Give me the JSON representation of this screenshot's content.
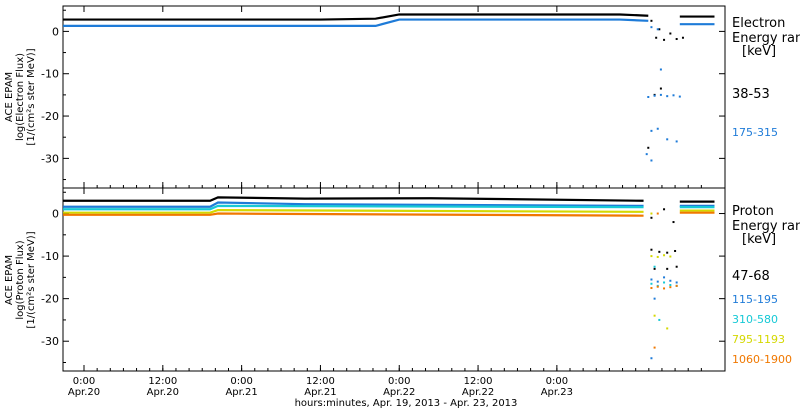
{
  "chart_data": [
    {
      "type": "scatter",
      "ylabel_lines": [
        "ACE EPAM",
        "log(Electron Flux)",
        "[1/(cm²s ster MeV)]"
      ],
      "yticks": [
        0,
        -10,
        -20,
        -30
      ],
      "ylim": [
        -37,
        6
      ],
      "xlim": [
        -0.1333,
        4.0667
      ],
      "legend_title_lines": [
        "Electron",
        "Energy ran",
        "[keV]"
      ],
      "series": [
        {
          "name": "38-53",
          "color": "#000000",
          "baseline": [
            [
              -0.133,
              2.8
            ],
            [
              1.5,
              2.8
            ],
            [
              1.85,
              3.0
            ],
            [
              2.0,
              4.0
            ],
            [
              3.4,
              4.0
            ],
            [
              3.58,
              3.7
            ]
          ],
          "values_end": [
            [
              3.78,
              3.5
            ],
            [
              4.0,
              3.5
            ]
          ],
          "values_scatter": [
            [
              3.6,
              2.5
            ],
            [
              3.63,
              -1.5
            ],
            [
              3.65,
              0.5
            ],
            [
              3.68,
              -2.0
            ],
            [
              3.72,
              -0.5
            ],
            [
              3.76,
              -1.8
            ],
            [
              3.8,
              -1.5
            ],
            [
              3.66,
              -13.5
            ],
            [
              3.58,
              -27.5
            ],
            [
              3.62,
              -15.0
            ]
          ]
        },
        {
          "name": "175-315",
          "color": "#1e7bd8",
          "baseline": [
            [
              -0.133,
              1.3
            ],
            [
              1.85,
              1.3
            ],
            [
              2.0,
              2.8
            ],
            [
              3.4,
              2.8
            ],
            [
              3.58,
              2.5
            ]
          ],
          "values_end": [
            [
              3.78,
              1.7
            ],
            [
              4.0,
              1.7
            ]
          ],
          "values_scatter": [
            [
              3.58,
              -15.5
            ],
            [
              3.62,
              -15.2
            ],
            [
              3.66,
              -15.0
            ],
            [
              3.7,
              -15.3
            ],
            [
              3.74,
              -15.1
            ],
            [
              3.78,
              -15.4
            ],
            [
              3.66,
              -9.0
            ],
            [
              3.6,
              1.0
            ],
            [
              3.64,
              0.5
            ],
            [
              3.6,
              -23.5
            ],
            [
              3.64,
              -23.0
            ],
            [
              3.7,
              -25.5
            ],
            [
              3.76,
              -26.0
            ],
            [
              3.57,
              -29.0
            ],
            [
              3.6,
              -30.5
            ]
          ]
        }
      ]
    },
    {
      "type": "scatter",
      "ylabel_lines": [
        "ACE EPAM",
        "log(Proton Flux)",
        "[1/(cm²s ster MeV)]"
      ],
      "yticks": [
        0,
        -10,
        -20,
        -30
      ],
      "ylim": [
        -37,
        6
      ],
      "xlim": [
        -0.1333,
        4.0667
      ],
      "legend_title_lines": [
        "Proton",
        "Energy ran",
        "[keV]"
      ],
      "xticks": [
        {
          "value": 0.0,
          "time": "0:00",
          "date": "Apr.20"
        },
        {
          "value": 0.5,
          "time": "12:00",
          "date": "Apr.20"
        },
        {
          "value": 1.0,
          "time": "0:00",
          "date": "Apr.21"
        },
        {
          "value": 1.5,
          "time": "12:00",
          "date": "Apr.21"
        },
        {
          "value": 2.0,
          "time": "0:00",
          "date": "Apr.22"
        },
        {
          "value": 2.5,
          "time": "12:00",
          "date": "Apr.22"
        },
        {
          "value": 3.0,
          "time": "0:00",
          "date": "Apr.23"
        }
      ],
      "xlabel": "hours:minutes, Apr. 19, 2013 - Apr. 23, 2013",
      "series": [
        {
          "name": "47-68",
          "color": "#000000",
          "baseline": [
            [
              -0.133,
              3.0
            ],
            [
              0.8,
              3.0
            ],
            [
              0.85,
              3.8
            ],
            [
              1.4,
              3.5
            ],
            [
              2.2,
              3.6
            ],
            [
              3.55,
              3.0
            ]
          ],
          "values_end": [
            [
              3.78,
              2.8
            ],
            [
              4.0,
              2.8
            ]
          ],
          "values_scatter": [
            [
              3.6,
              -8.5
            ],
            [
              3.65,
              -9.0
            ],
            [
              3.7,
              -9.2
            ],
            [
              3.75,
              -8.8
            ],
            [
              3.6,
              -1.0
            ],
            [
              3.68,
              1.0
            ],
            [
              3.74,
              -2.0
            ],
            [
              3.62,
              -13.0
            ],
            [
              3.7,
              -13.0
            ],
            [
              3.76,
              -12.5
            ]
          ]
        },
        {
          "name": "115-195",
          "color": "#1e7bd8",
          "baseline": [
            [
              -0.133,
              1.6
            ],
            [
              0.8,
              1.6
            ],
            [
              0.85,
              2.6
            ],
            [
              1.4,
              2.2
            ],
            [
              3.55,
              1.8
            ]
          ],
          "values_end": [
            [
              3.78,
              1.8
            ],
            [
              4.0,
              1.8
            ]
          ],
          "values_scatter": [
            [
              3.6,
              -15.5
            ],
            [
              3.64,
              -16.0
            ],
            [
              3.68,
              -15.0
            ],
            [
              3.72,
              -15.8
            ],
            [
              3.76,
              -16.2
            ],
            [
              3.62,
              -20.0
            ],
            [
              3.6,
              -34.0
            ]
          ]
        },
        {
          "name": "310-580",
          "color": "#16c9d6",
          "baseline": [
            [
              -0.133,
              1.0
            ],
            [
              0.8,
              1.0
            ],
            [
              0.85,
              1.8
            ],
            [
              3.55,
              1.5
            ]
          ],
          "values_end": [
            [
              3.78,
              1.5
            ],
            [
              4.0,
              1.5
            ]
          ],
          "values_scatter": [
            [
              3.6,
              -16.5
            ],
            [
              3.64,
              -17.0
            ],
            [
              3.68,
              -16.2
            ],
            [
              3.72,
              -16.8
            ],
            [
              3.76,
              -17.0
            ],
            [
              3.62,
              -12.5
            ],
            [
              3.65,
              -25.0
            ]
          ]
        },
        {
          "name": "795-1193",
          "color": "#d4d800",
          "baseline": [
            [
              -0.133,
              0.2
            ],
            [
              0.8,
              0.2
            ],
            [
              0.85,
              0.8
            ],
            [
              3.55,
              0.4
            ]
          ],
          "values_end": [
            [
              3.78,
              0.7
            ],
            [
              4.0,
              0.7
            ]
          ],
          "values_scatter": [
            [
              3.6,
              -10.0
            ],
            [
              3.64,
              -10.2
            ],
            [
              3.68,
              -9.8
            ],
            [
              3.72,
              -10.1
            ],
            [
              3.62,
              -24.0
            ],
            [
              3.7,
              -27.0
            ],
            [
              3.6,
              0.0
            ]
          ]
        },
        {
          "name": "1060-1900",
          "color": "#f07800",
          "baseline": [
            [
              -0.133,
              -0.3
            ],
            [
              0.8,
              -0.3
            ],
            [
              0.85,
              0.0
            ],
            [
              3.55,
              -0.5
            ]
          ],
          "values_end": [
            [
              3.78,
              0.2
            ],
            [
              4.0,
              0.2
            ]
          ],
          "values_scatter": [
            [
              3.6,
              -17.5
            ],
            [
              3.64,
              -17.2
            ],
            [
              3.68,
              -17.6
            ],
            [
              3.72,
              -17.3
            ],
            [
              3.76,
              -17.0
            ],
            [
              3.62,
              -31.5
            ],
            [
              3.64,
              0.0
            ]
          ]
        }
      ]
    }
  ]
}
